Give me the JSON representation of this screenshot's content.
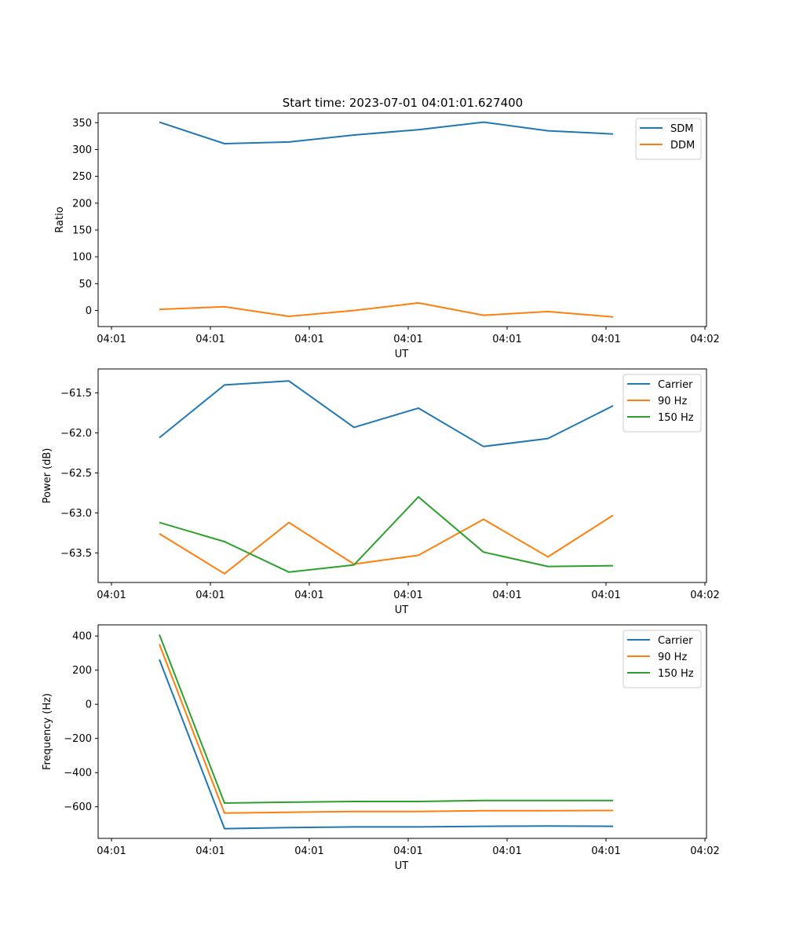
{
  "figure": {
    "title": "Start time: 2023-07-01 04:01:01.627400"
  },
  "colors": {
    "blue": "#1f77b4",
    "orange": "#ff7f0e",
    "green": "#2ca02c",
    "axis": "#000000",
    "legend_border": "#cccccc"
  },
  "chart_data": [
    {
      "type": "line",
      "title": "Start time: 2023-07-01 04:01:01.627400",
      "xlabel": "UT",
      "ylabel": "Ratio",
      "x_tick_labels": [
        "04:01",
        "04:01",
        "04:01",
        "04:01",
        "04:01",
        "04:01",
        "04:02"
      ],
      "y_ticks": [
        0,
        50,
        100,
        150,
        200,
        250,
        300,
        350
      ],
      "y_tick_labels": [
        "0",
        "50",
        "100",
        "150",
        "200",
        "250",
        "300",
        "350"
      ],
      "ylim": [
        -30,
        368
      ],
      "legend_position": "top-right",
      "series": [
        {
          "name": "SDM",
          "color": "#1f77b4",
          "values": [
            351,
            311,
            314,
            327,
            337,
            351,
            335,
            329
          ]
        },
        {
          "name": "DDM",
          "color": "#ff7f0e",
          "values": [
            2,
            7,
            -11,
            0,
            14,
            -9,
            -2,
            -12
          ]
        }
      ]
    },
    {
      "type": "line",
      "title": "",
      "xlabel": "UT",
      "ylabel": "Power (dB)",
      "x_tick_labels": [
        "04:01",
        "04:01",
        "04:01",
        "04:01",
        "04:01",
        "04:01",
        "04:02"
      ],
      "y_ticks": [
        -63.5,
        -63.0,
        -62.5,
        -62.0,
        -61.5
      ],
      "y_tick_labels": [
        "−63.5",
        "−63.0",
        "−62.5",
        "−62.0",
        "−61.5"
      ],
      "ylim": [
        -63.87,
        -61.2
      ],
      "legend_position": "top-right",
      "series": [
        {
          "name": "Carrier",
          "color": "#1f77b4",
          "values": [
            -62.06,
            -61.4,
            -61.35,
            -61.93,
            -61.69,
            -62.17,
            -62.07,
            -61.66
          ]
        },
        {
          "name": "90 Hz",
          "color": "#ff7f0e",
          "values": [
            -63.26,
            -63.76,
            -63.12,
            -63.64,
            -63.53,
            -63.08,
            -63.55,
            -63.03
          ]
        },
        {
          "name": "150 Hz",
          "color": "#2ca02c",
          "values": [
            -63.12,
            -63.36,
            -63.74,
            -63.65,
            -62.8,
            -63.49,
            -63.67,
            -63.66
          ]
        }
      ]
    },
    {
      "type": "line",
      "title": "",
      "xlabel": "UT",
      "ylabel": "Frequency (Hz)",
      "x_tick_labels": [
        "04:01",
        "04:01",
        "04:01",
        "04:01",
        "04:01",
        "04:01",
        "04:02"
      ],
      "y_ticks": [
        -600,
        -400,
        -200,
        0,
        200,
        400
      ],
      "y_tick_labels": [
        "−600",
        "−400",
        "−200",
        "0",
        "200",
        "400"
      ],
      "ylim": [
        -785,
        465
      ],
      "legend_position": "top-right",
      "series": [
        {
          "name": "Carrier",
          "color": "#1f77b4",
          "values": [
            263,
            -728,
            -722,
            -718,
            -718,
            -714,
            -713,
            -714
          ]
        },
        {
          "name": "90 Hz",
          "color": "#ff7f0e",
          "values": [
            352,
            -637,
            -632,
            -628,
            -628,
            -623,
            -623,
            -622
          ]
        },
        {
          "name": "150 Hz",
          "color": "#2ca02c",
          "values": [
            408,
            -578,
            -573,
            -569,
            -569,
            -563,
            -563,
            -563
          ]
        }
      ]
    }
  ]
}
